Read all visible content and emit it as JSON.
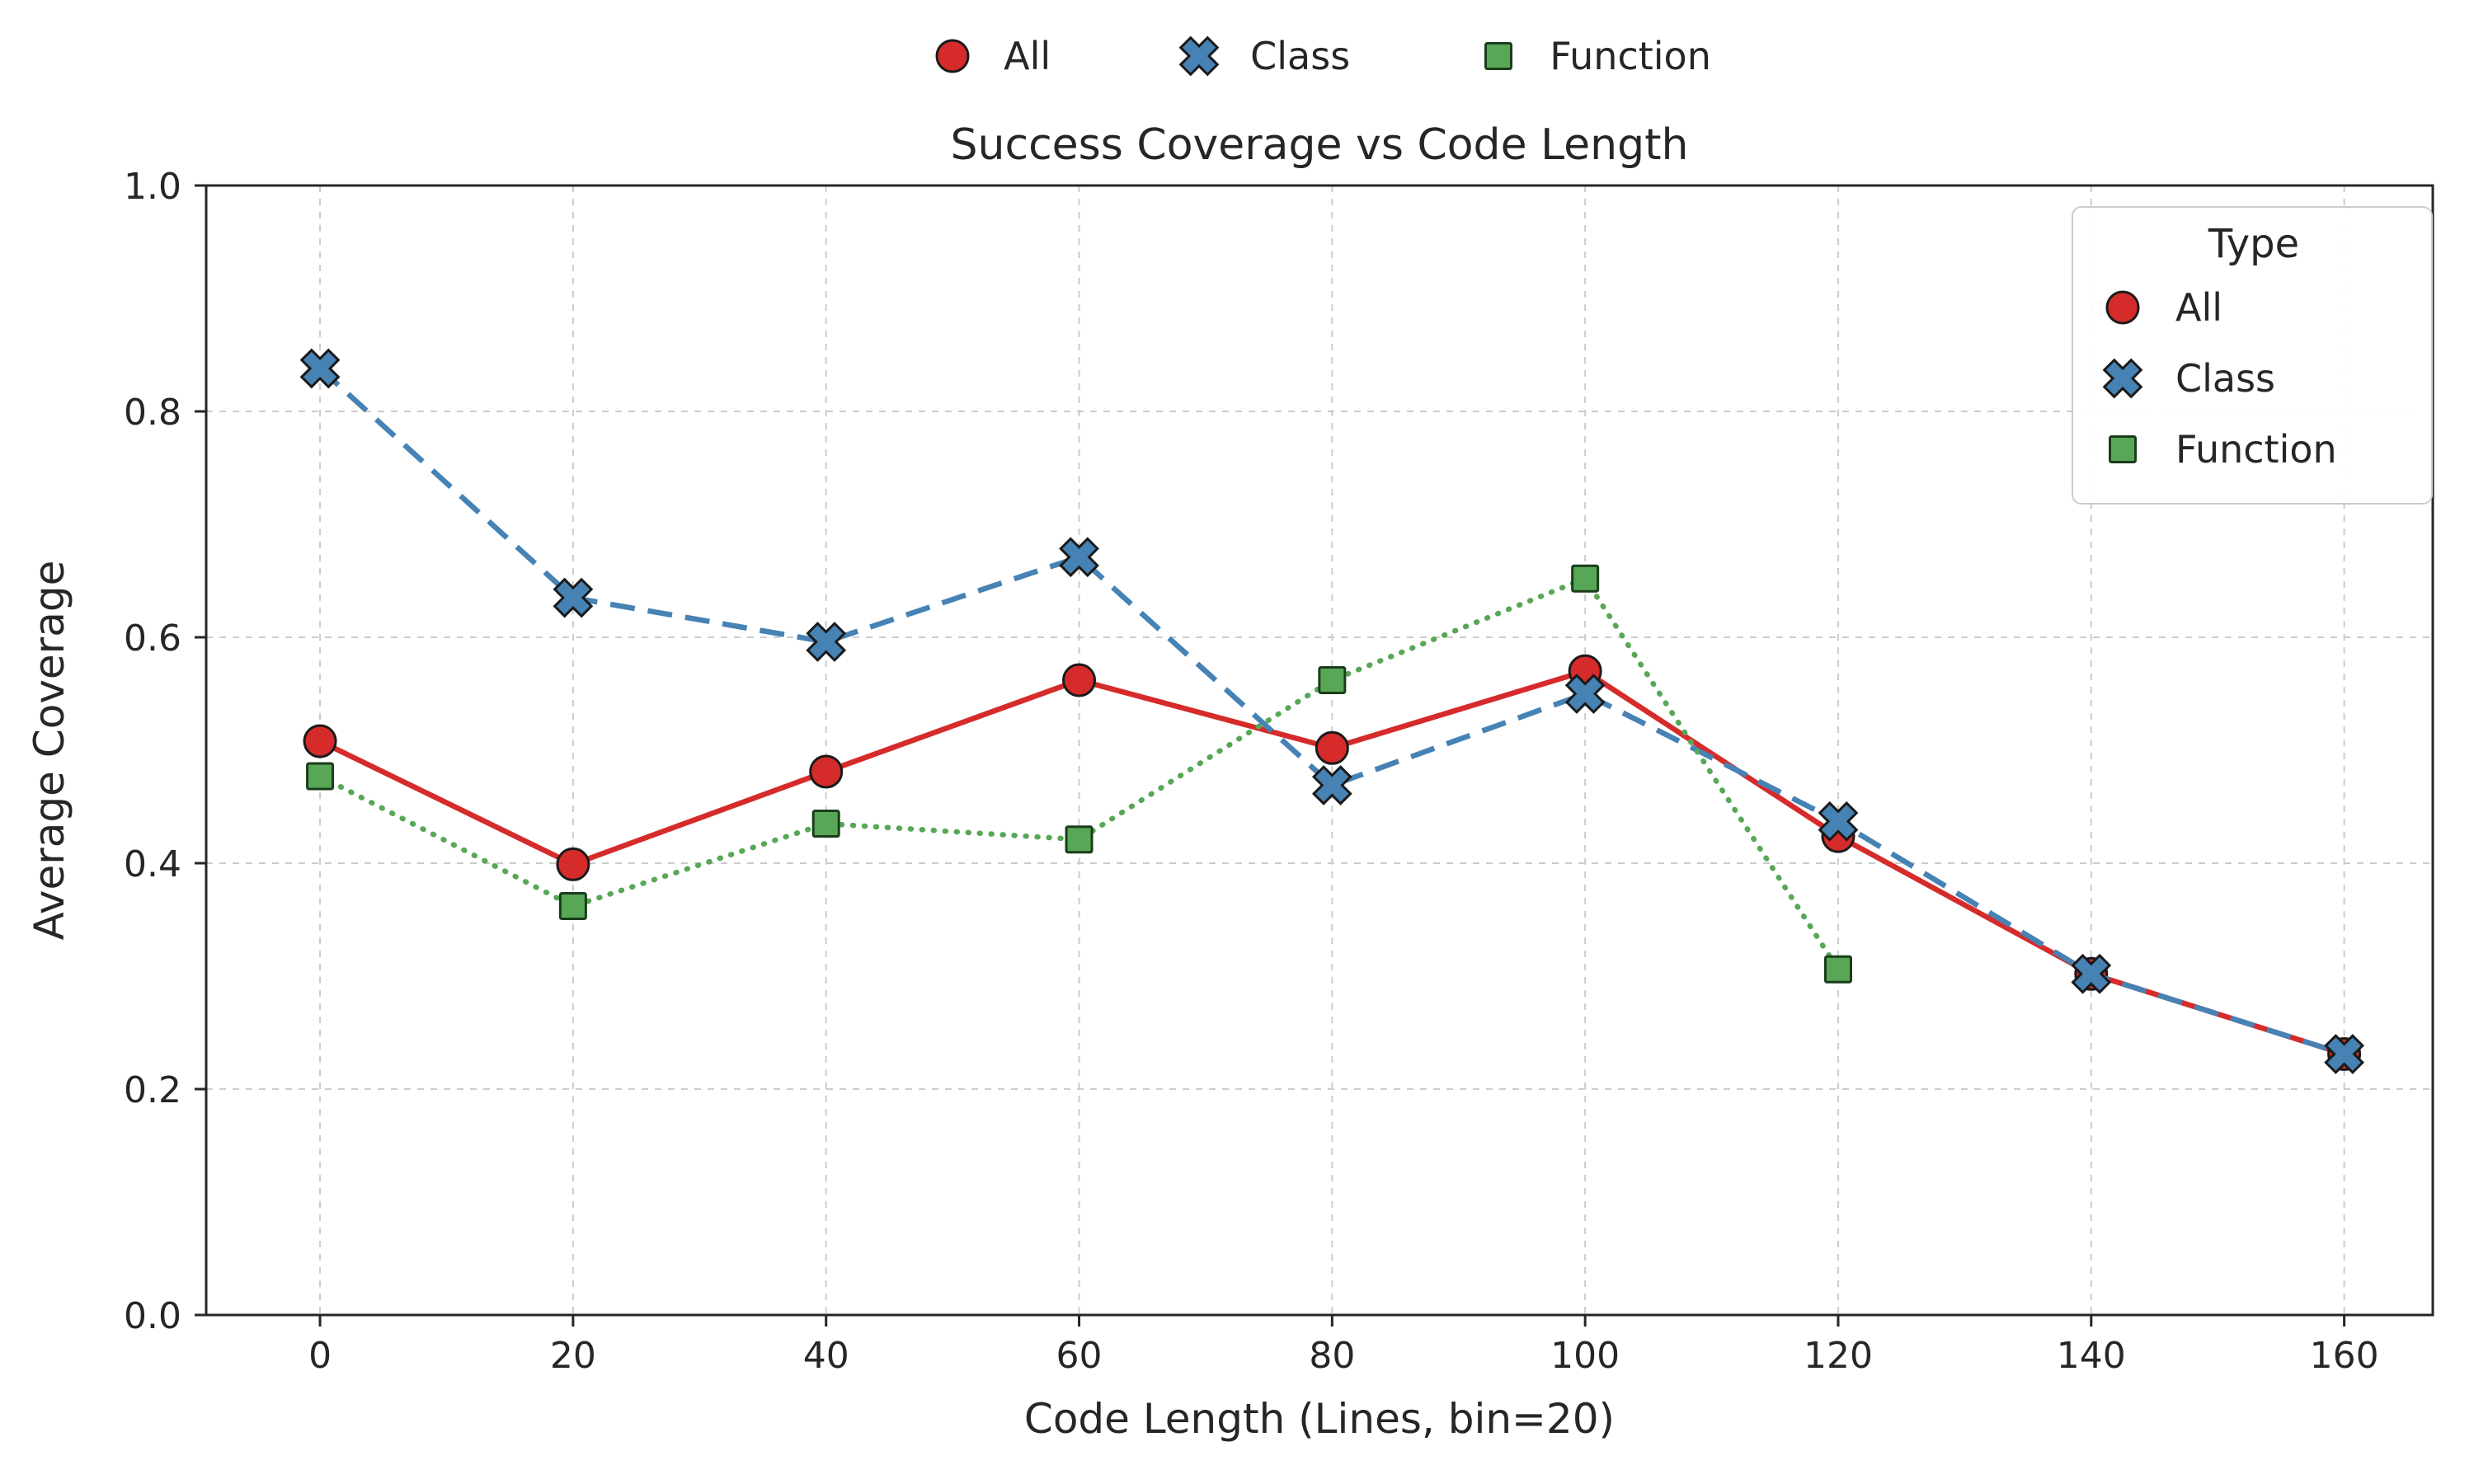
{
  "chart_data": {
    "type": "line",
    "title": "Success Coverage vs Code Length",
    "xlabel": "Code Length (Lines, bin=20)",
    "ylabel": "Average Coverage",
    "legend_title": "Type",
    "legend_positions": [
      "top-center-outside",
      "upper-right-inside"
    ],
    "grid": true,
    "grid_style": "dashed",
    "xlim": [
      -9,
      167
    ],
    "ylim": [
      0,
      1
    ],
    "xticks": [
      0,
      20,
      40,
      60,
      80,
      100,
      120,
      140,
      160
    ],
    "yticks": [
      0.0,
      0.2,
      0.4,
      0.6,
      0.8,
      1.0
    ],
    "axis_color": "#262626",
    "grid_color": "#cccccc",
    "series": [
      {
        "name": "All",
        "marker": "circle",
        "line": "solid",
        "color": "#d62b2b",
        "edge": "#1a1a1a",
        "x": [
          0,
          20,
          40,
          60,
          80,
          100,
          120,
          140,
          160
        ],
        "y": [
          0.508,
          0.399,
          0.481,
          0.562,
          0.502,
          0.57,
          0.424,
          0.302,
          0.231
        ]
      },
      {
        "name": "Class",
        "marker": "x",
        "line": "dashed",
        "color": "#4682b4",
        "edge": "#1a1a1a",
        "x": [
          0,
          20,
          40,
          60,
          80,
          100,
          120,
          140,
          160
        ],
        "y": [
          0.838,
          0.635,
          0.596,
          0.671,
          0.469,
          0.55,
          0.437,
          0.302,
          0.231
        ]
      },
      {
        "name": "Function",
        "marker": "square",
        "line": "dotted",
        "color": "#57a757",
        "edge": "#1a3d1a",
        "x": [
          0,
          20,
          40,
          60,
          80,
          100,
          120
        ],
        "y": [
          0.477,
          0.362,
          0.435,
          0.421,
          0.562,
          0.652,
          0.306
        ]
      }
    ]
  }
}
